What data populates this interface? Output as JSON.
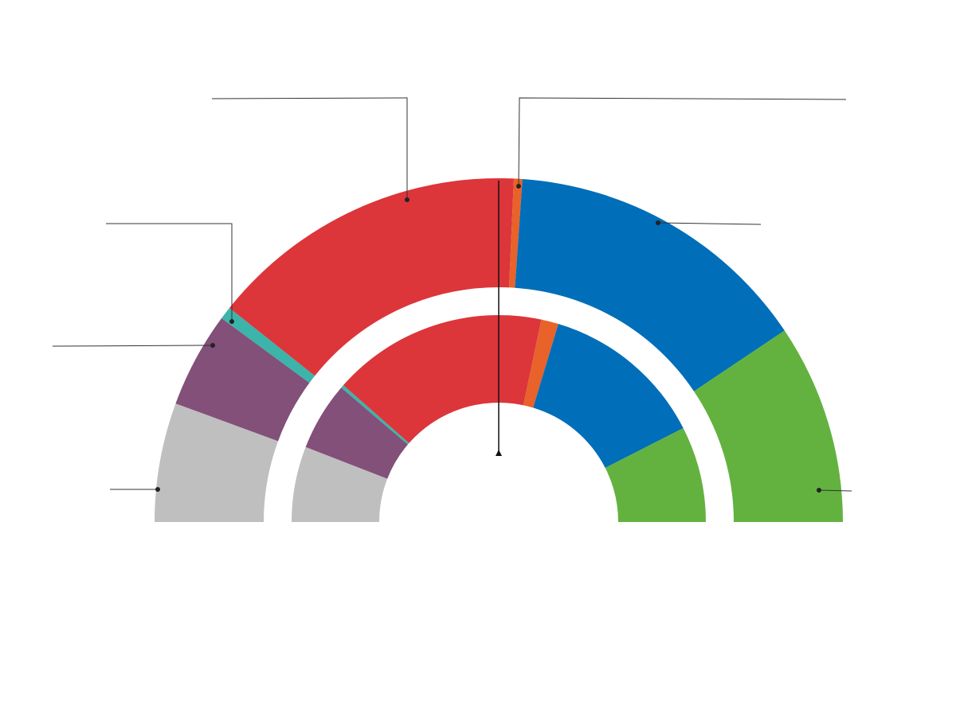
{
  "chart_data": {
    "type": "semi-donut",
    "colors": [
      "#bfbfbf",
      "#825079",
      "#3cb4aa",
      "#dc353a",
      "#e8622a",
      "#006eb8",
      "#63b240"
    ],
    "series": [
      {
        "values": [
          11.2,
          9.0,
          1.2,
          30.0,
          0.8,
          29.0,
          18.8
        ]
      },
      {
        "values": [
          11.8,
          10.7,
          0.5,
          33.6,
          2.7,
          25.7,
          15.0
        ]
      }
    ]
  }
}
